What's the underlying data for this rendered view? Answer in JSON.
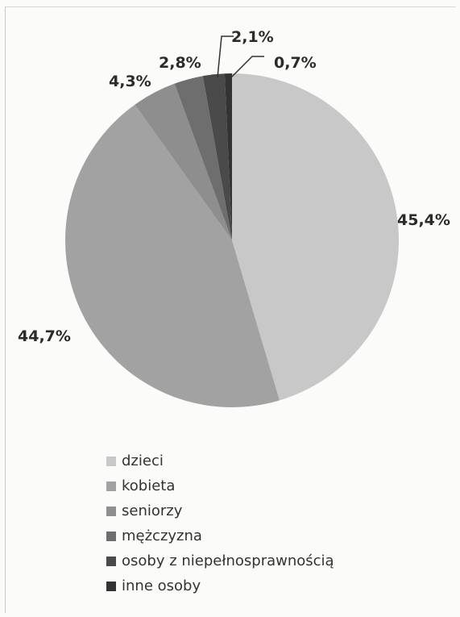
{
  "chart_data": {
    "type": "pie",
    "legend_placement": "bottom",
    "slices": [
      {
        "label": "dzieci",
        "value": 45.4,
        "value_label": "45,4%",
        "color": "#c8c8c8"
      },
      {
        "label": "kobieta",
        "value": 44.7,
        "value_label": "44,7%",
        "color": "#a2a2a2"
      },
      {
        "label": "seniorzy",
        "value": 4.3,
        "value_label": "4,3%",
        "color": "#8e8e8e"
      },
      {
        "label": "mężczyzna",
        "value": 2.8,
        "value_label": "2,8%",
        "color": "#6e6e6e"
      },
      {
        "label": "osoby z niepełnosprawnością",
        "value": 2.1,
        "value_label": "2,1%",
        "color": "#4a4a4a"
      },
      {
        "label": "inne osoby",
        "value": 0.7,
        "value_label": "0,7%",
        "color": "#333333"
      }
    ]
  }
}
